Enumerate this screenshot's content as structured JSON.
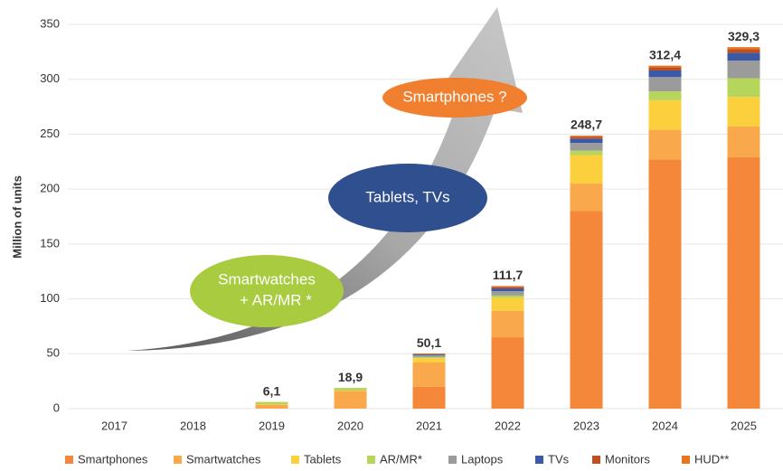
{
  "chart_data": {
    "type": "stacked_bar",
    "y_label": "Million of units",
    "categories": [
      "2017",
      "2018",
      "2019",
      "2020",
      "2021",
      "2022",
      "2023",
      "2024",
      "2025"
    ],
    "series": [
      {
        "name": "Smartphones",
        "color": "#f4873a",
        "values": [
          0,
          0,
          0,
          0,
          20,
          65,
          180,
          227,
          229
        ]
      },
      {
        "name": "Smartwatches",
        "color": "#f9a94b",
        "values": [
          0,
          0,
          3.6,
          16,
          22,
          24,
          25,
          27,
          28
        ]
      },
      {
        "name": "Tablets",
        "color": "#fbd03c",
        "values": [
          0,
          0,
          0.5,
          0.5,
          4,
          12,
          26,
          27,
          27
        ]
      },
      {
        "name": "AR/MR*",
        "color": "#b5d55b",
        "values": [
          0,
          0,
          2.0,
          2.4,
          1,
          2,
          4,
          8,
          17
        ]
      },
      {
        "name": "Laptops",
        "color": "#9b9b9b",
        "values": [
          0,
          0,
          0,
          0,
          1.5,
          4,
          7,
          13,
          16
        ]
      },
      {
        "name": "TVs",
        "color": "#3b59a6",
        "values": [
          0,
          0,
          0,
          0,
          0.8,
          2.5,
          4,
          6,
          7
        ]
      },
      {
        "name": "Monitors",
        "color": "#c0501c",
        "values": [
          0,
          0,
          0,
          0,
          0.5,
          1.2,
          1.7,
          3,
          3.5
        ]
      },
      {
        "name": "HUD**",
        "color": "#e8761f",
        "values": [
          0,
          0,
          0,
          0,
          0.3,
          1,
          1,
          1.4,
          1.8
        ]
      }
    ],
    "totals": [
      null,
      null,
      6.1,
      18.9,
      50.1,
      111.7,
      248.7,
      312.4,
      329.3
    ],
    "total_labels": [
      null,
      null,
      "6,1",
      "18,9",
      "50,1",
      "111,7",
      "248,7",
      "312,4",
      "329,3"
    ],
    "annotations": [
      "Smartphones ?",
      "Tablets, TVs",
      "Smartwatches",
      "+ AR/MR *"
    ],
    "ylim": [
      0,
      350
    ],
    "yticks": [
      0,
      50,
      100,
      150,
      200,
      250,
      300,
      350
    ],
    "grid": true
  }
}
